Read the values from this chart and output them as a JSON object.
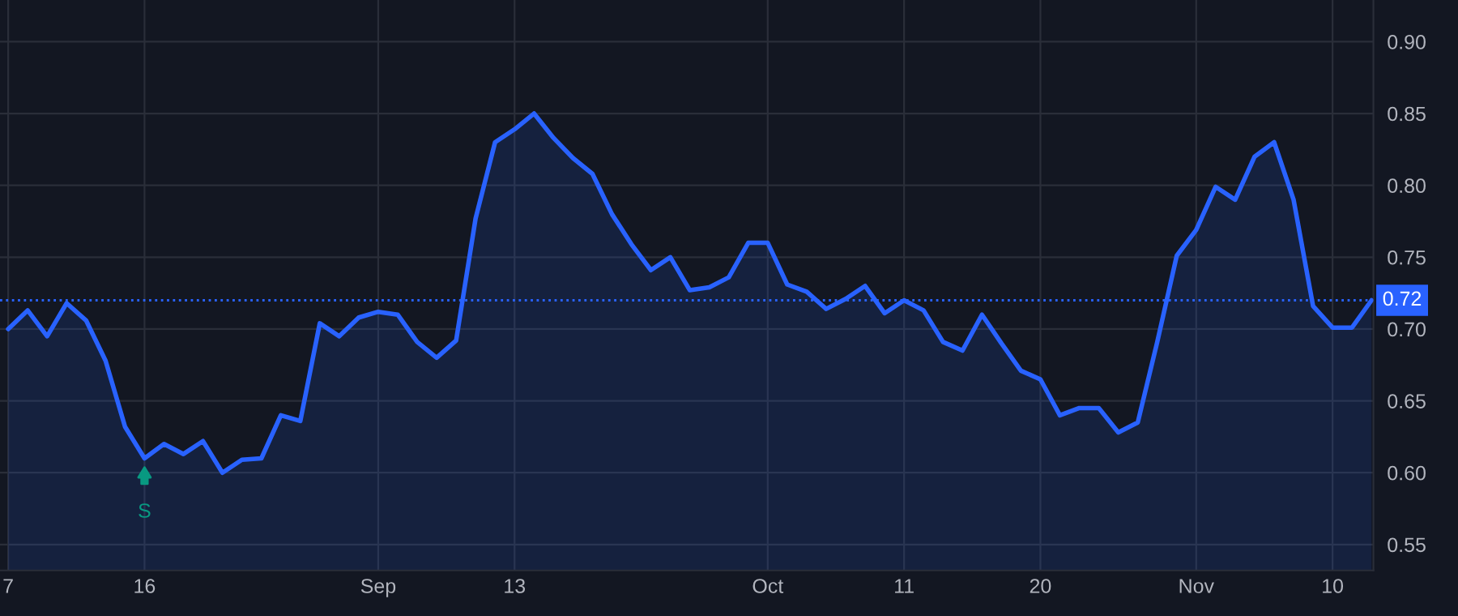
{
  "chart_data": {
    "type": "area",
    "categories": [
      "7",
      null,
      null,
      null,
      null,
      null,
      null,
      "16",
      null,
      null,
      null,
      null,
      null,
      null,
      null,
      null,
      null,
      null,
      null,
      "Sep",
      null,
      null,
      null,
      null,
      null,
      null,
      "13",
      null,
      null,
      null,
      null,
      null,
      null,
      null,
      null,
      null,
      null,
      null,
      null,
      "Oct",
      null,
      null,
      null,
      null,
      null,
      null,
      "11",
      null,
      null,
      null,
      null,
      null,
      null,
      "20",
      null,
      null,
      null,
      null,
      null,
      null,
      null,
      "Nov",
      null,
      null,
      null,
      null,
      null,
      null,
      "10",
      null,
      null
    ],
    "series": [
      {
        "color": "#2962ff",
        "values": [
          0.7,
          0.713,
          0.695,
          0.718,
          0.706,
          0.678,
          0.632,
          0.61,
          0.62,
          0.613,
          0.622,
          0.6,
          0.609,
          0.61,
          0.64,
          0.636,
          0.704,
          0.695,
          0.708,
          0.712,
          0.71,
          0.691,
          0.68,
          0.692,
          0.777,
          0.83,
          0.839,
          0.85,
          0.833,
          0.819,
          0.808,
          0.78,
          0.759,
          0.741,
          0.75,
          0.727,
          0.729,
          0.736,
          0.76,
          0.76,
          0.731,
          0.726,
          0.714,
          0.721,
          0.73,
          0.711,
          0.72,
          0.713,
          0.691,
          0.685,
          0.71,
          0.69,
          0.671,
          0.665,
          0.64,
          0.645,
          0.645,
          0.628,
          0.635,
          0.691,
          0.751,
          0.769,
          0.799,
          0.79,
          0.82,
          0.83,
          0.79,
          0.716,
          0.701,
          0.701,
          0.72
        ]
      }
    ],
    "ylim": [
      0.532,
      0.929
    ],
    "yticks": [
      0.55,
      {
        "value": 0.6,
        "label": "0.60"
      },
      0.65,
      {
        "value": 0.7,
        "label": "0.70"
      },
      0.75,
      {
        "value": 0.8,
        "label": "0.80"
      },
      0.85,
      {
        "value": 0.9,
        "label": "0.90"
      }
    ],
    "grid": true,
    "ref_lines": [
      {
        "axis": "y",
        "value": 0.72,
        "label": "0.72",
        "color": "#2962ff",
        "line_style": "dotted"
      }
    ],
    "annotations": [
      {
        "text": "S",
        "x": "16",
        "y": 0.61
      }
    ]
  }
}
